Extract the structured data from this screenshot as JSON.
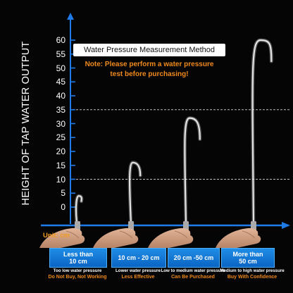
{
  "axis": {
    "title": "HEIGHT OF TAP WATER OUTPUT",
    "unit": "Unit: cm",
    "ticks": [
      0,
      5,
      10,
      15,
      20,
      25,
      30,
      35,
      40,
      45,
      50,
      55,
      60
    ],
    "max": 60,
    "reference_levels": [
      10,
      35
    ]
  },
  "method": {
    "title": "Water Pressure Measurement Method",
    "note_line1": "Note: Please perform a water pressure",
    "note_line2": "test before purchasing!"
  },
  "categories": [
    {
      "box_line1": "Less than",
      "box_line2": "10 cm",
      "caption": "Too low water pressure",
      "verdict": "Do Not Buy, Not Working",
      "peak_cm": 4
    },
    {
      "box_line1": "10 cm - 20 cm",
      "box_line2": "",
      "caption": "Lower water pressure",
      "verdict": "Less Effective",
      "peak_cm": 16
    },
    {
      "box_line1": "20 cm -50 cm",
      "box_line2": "",
      "caption": "Low to medium water pressure",
      "verdict": "Can Be Purchased",
      "peak_cm": 32
    },
    {
      "box_line1": "More than",
      "box_line2": "50 cm",
      "caption": "Medium to high water pressure",
      "verdict": "Buy With Confidence",
      "peak_cm": 60
    }
  ],
  "colors": {
    "axis": "#1e7be8",
    "accent": "#f08a1c",
    "box": "#0a64c4",
    "reference_line": "#bfbfbf"
  }
}
